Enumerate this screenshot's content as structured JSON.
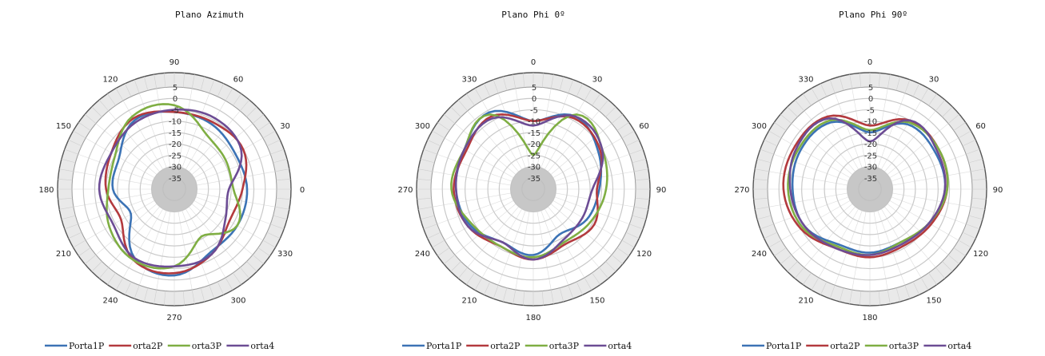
{
  "colors": {
    "Porta1P": "#3c73b5",
    "orta2P": "#b33a3e",
    "orta3P": "#7fae43",
    "orta4": "#6c4c94",
    "center_disc": "#bdbdbd",
    "tick_band": "#e9e9e9"
  },
  "chart_data": [
    {
      "type": "polar-line",
      "title": "Plano Azimuth",
      "angle_labels": [
        "0",
        "30",
        "60",
        "90",
        "120",
        "150",
        "180",
        "210",
        "240",
        "270",
        "300",
        "330"
      ],
      "angle_zero": "right",
      "angle_direction": "counterclockwise",
      "radial_ticks": [
        "5",
        "0",
        "-5",
        "-10",
        "-15",
        "-20",
        "-25",
        "-30",
        "-35"
      ],
      "rlim": [
        -40,
        5
      ],
      "legend_position": "bottom",
      "series_angles_deg": [
        0,
        30,
        60,
        90,
        120,
        150,
        180,
        210,
        240,
        270,
        300,
        330
      ],
      "series": [
        {
          "name": "Porta1P",
          "values": [
            -8,
            -9,
            -7,
            -6,
            -5,
            -12,
            -13,
            -18,
            -5,
            -2,
            -8,
            -8
          ]
        },
        {
          "name": "orta2P",
          "values": [
            -10,
            -5,
            -6,
            -6,
            -4,
            -8,
            -10,
            -13,
            -4,
            -3,
            -7,
            -12
          ]
        },
        {
          "name": "orta3P",
          "values": [
            -14,
            -14,
            -12,
            -3,
            -3,
            -10,
            -11,
            -7,
            -4,
            -6,
            -16,
            -8
          ]
        },
        {
          "name": "orta4",
          "values": [
            -16,
            -6,
            -4,
            -5,
            -6,
            -8,
            -7,
            -9,
            -5,
            -6,
            -7,
            -14
          ]
        }
      ]
    },
    {
      "type": "polar-line",
      "title": "Plano Phi 0º",
      "angle_labels": [
        "0",
        "30",
        "60",
        "90",
        "120",
        "150",
        "180",
        "210",
        "240",
        "270",
        "300",
        "330"
      ],
      "angle_zero": "top",
      "angle_direction": "clockwise",
      "radial_ticks": [
        "5",
        "0",
        "-5",
        "-10",
        "-15",
        "-20",
        "-25",
        "-30",
        "-35"
      ],
      "rlim": [
        -40,
        5
      ],
      "legend_position": "bottom",
      "series_angles_deg": [
        0,
        30,
        60,
        90,
        120,
        150,
        180,
        210,
        240,
        270,
        300,
        330
      ],
      "series": [
        {
          "name": "Porta1P",
          "values": [
            -10,
            -3,
            -7,
            -11,
            -13,
            -17,
            -11,
            -13,
            -8,
            -6,
            -5,
            -1
          ]
        },
        {
          "name": "orta2P",
          "values": [
            -10,
            -4,
            -6,
            -12,
            -9,
            -12,
            -9,
            -11,
            -7,
            -5,
            -6,
            -3
          ]
        },
        {
          "name": "orta3P",
          "values": [
            -25,
            -2,
            -5,
            -8,
            -11,
            -13,
            -10,
            -11,
            -9,
            -4,
            -5,
            -2
          ]
        },
        {
          "name": "orta4",
          "values": [
            -12,
            -3,
            -5,
            -14,
            -15,
            -14,
            -9,
            -13,
            -7,
            -6,
            -5,
            -4
          ]
        }
      ]
    },
    {
      "type": "polar-line",
      "title": "Plano Phi 90º",
      "angle_labels": [
        "0",
        "30",
        "60",
        "90",
        "120",
        "150",
        "180",
        "210",
        "240",
        "270",
        "300",
        "330"
      ],
      "angle_zero": "top",
      "angle_direction": "clockwise",
      "radial_ticks": [
        "5",
        "0",
        "-5",
        "-10",
        "-15",
        "-20",
        "-25",
        "-30",
        "-35"
      ],
      "rlim": [
        -40,
        5
      ],
      "legend_position": "bottom",
      "series_angles_deg": [
        0,
        30,
        60,
        90,
        120,
        150,
        180,
        210,
        240,
        270,
        300,
        330
      ],
      "series": [
        {
          "name": "Porta1P",
          "values": [
            -15,
            -7,
            -7,
            -7,
            -10,
            -13,
            -12,
            -12,
            -7,
            -6,
            -5,
            -6
          ]
        },
        {
          "name": "orta2P",
          "values": [
            -12,
            -5,
            -5,
            -6,
            -9,
            -11,
            -10,
            -10,
            -5,
            -2,
            -2,
            -3
          ]
        },
        {
          "name": "orta3P",
          "values": [
            -14,
            -6,
            -5,
            -6,
            -10,
            -13,
            -11,
            -11,
            -6,
            -4,
            -4,
            -5
          ]
        },
        {
          "name": "orta4",
          "values": [
            -19,
            -5,
            -6,
            -7,
            -10,
            -12,
            -11,
            -10,
            -7,
            -5,
            -3,
            -4
          ]
        }
      ]
    }
  ]
}
